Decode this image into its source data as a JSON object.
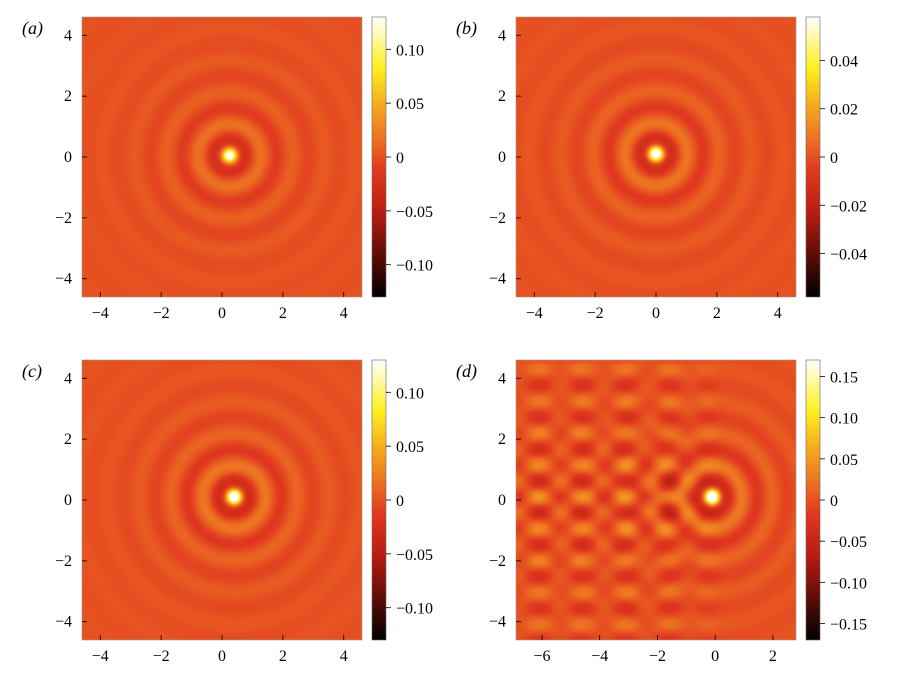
{
  "chart_data": [
    {
      "type": "heatmap",
      "panel_label": "(a)",
      "x_ticks": [
        -4,
        -2,
        0,
        2,
        4
      ],
      "y_ticks": [
        -4,
        -2,
        0,
        2,
        4
      ],
      "xlim": [
        -4.6,
        4.6
      ],
      "ylim": [
        -4.6,
        4.6
      ],
      "colorbar": {
        "ticks": [
          "0.10",
          "0.05",
          "0",
          "−0.05",
          "−0.10"
        ],
        "tick_values": [
          0.1,
          0.05,
          0,
          -0.05,
          -0.1
        ],
        "range": [
          -0.13,
          0.13
        ]
      },
      "source_center": [
        0.25,
        0.05
      ],
      "wavelength": 1.05,
      "peak_value": 0.1,
      "wake": false
    },
    {
      "type": "heatmap",
      "panel_label": "(b)",
      "x_ticks": [
        -4,
        -2,
        0,
        2,
        4
      ],
      "y_ticks": [
        -4,
        -2,
        0,
        2,
        4
      ],
      "xlim": [
        -4.6,
        4.6
      ],
      "ylim": [
        -4.6,
        4.6
      ],
      "colorbar": {
        "ticks": [
          "0.04",
          "0.02",
          "0",
          "−0.02",
          "−0.04"
        ],
        "tick_values": [
          0.04,
          0.02,
          0,
          -0.02,
          -0.04
        ],
        "range": [
          -0.058,
          0.058
        ]
      },
      "source_center": [
        0.0,
        0.1
      ],
      "wavelength": 1.05,
      "peak_value": 0.05,
      "wake": false
    },
    {
      "type": "heatmap",
      "panel_label": "(c)",
      "x_ticks": [
        -4,
        -2,
        0,
        2,
        4
      ],
      "y_ticks": [
        -4,
        -2,
        0,
        2,
        4
      ],
      "xlim": [
        -4.6,
        4.6
      ],
      "ylim": [
        -4.6,
        4.6
      ],
      "colorbar": {
        "ticks": [
          "0.10",
          "0.05",
          "0",
          "−0.05",
          "−0.10"
        ],
        "tick_values": [
          0.1,
          0.05,
          0,
          -0.05,
          -0.1
        ],
        "range": [
          -0.13,
          0.13
        ]
      },
      "source_center": [
        0.4,
        0.1
      ],
      "wavelength": 1.05,
      "peak_value": 0.12,
      "wake": false
    },
    {
      "type": "heatmap",
      "panel_label": "(d)",
      "x_ticks": [
        -6,
        -4,
        -2,
        0,
        2
      ],
      "y_ticks": [
        -4,
        -2,
        0,
        2,
        4
      ],
      "xlim": [
        -6.9,
        2.8
      ],
      "ylim": [
        -4.6,
        4.6
      ],
      "colorbar": {
        "ticks": [
          "0.15",
          "0.10",
          "0.05",
          "0",
          "−0.05",
          "−0.10",
          "−0.15"
        ],
        "tick_values": [
          0.15,
          0.1,
          0.05,
          0,
          -0.05,
          -0.1,
          -0.15
        ],
        "range": [
          -0.17,
          0.17
        ]
      },
      "source_center": [
        -0.1,
        0.1
      ],
      "wavelength": 1.05,
      "peak_value": 0.16,
      "wake": true
    }
  ]
}
